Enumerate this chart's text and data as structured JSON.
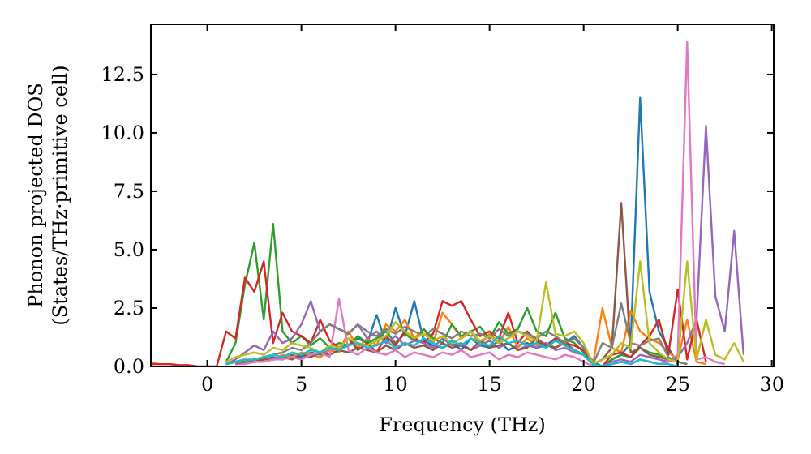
{
  "chart_data": {
    "type": "line",
    "xlabel": "Frequency (THz)",
    "ylabel": "Phonon projected DOS\n(States/THz·primitive cell)",
    "xlim": [
      -3,
      30.1
    ],
    "ylim": [
      0,
      14.65
    ],
    "xticks": [
      0,
      5,
      10,
      15,
      20,
      25,
      30
    ],
    "yticks": [
      {
        "value": 0,
        "label": "0.0"
      },
      {
        "value": 2.5,
        "label": "2.5"
      },
      {
        "value": 5,
        "label": "5.0"
      },
      {
        "value": 7.5,
        "label": "7.5"
      },
      {
        "value": 10,
        "label": "10.0"
      },
      {
        "value": 12.5,
        "label": "12.5"
      }
    ],
    "grid": false,
    "marker": "none",
    "line_style": "solid",
    "x": [
      -3,
      -2.5,
      -2,
      -1.5,
      -1,
      -0.5,
      0,
      0.5,
      1,
      1.5,
      2,
      2.5,
      3,
      3.5,
      4,
      4.5,
      5,
      5.5,
      6,
      6.5,
      7,
      7.5,
      8,
      8.5,
      9,
      9.5,
      10,
      10.5,
      11,
      11.5,
      12,
      12.5,
      13,
      13.5,
      14,
      14.5,
      15,
      15.5,
      16,
      16.5,
      17,
      17.5,
      18,
      18.5,
      19,
      19.5,
      20,
      20.5,
      21,
      21.5,
      22,
      22.5,
      23,
      23.5,
      24,
      24.5,
      25,
      25.5,
      26,
      26.5,
      27,
      27.5,
      28,
      28.5
    ],
    "series": [
      {
        "color": "#1f77b4",
        "values": [
          null,
          null,
          null,
          null,
          null,
          null,
          null,
          null,
          0.1,
          0.2,
          0.2,
          0.3,
          0.3,
          0.4,
          0.3,
          0.5,
          0.4,
          0.6,
          0.5,
          0.7,
          0.8,
          0.9,
          1.2,
          1.0,
          2.2,
          1.0,
          2.5,
          1.3,
          2.8,
          1.1,
          0.9,
          0.8,
          1.0,
          0.7,
          1.2,
          0.9,
          0.8,
          1.1,
          0.7,
          0.9,
          1.0,
          0.8,
          0.9,
          1.2,
          1.0,
          1.3,
          0.8,
          0.2,
          0,
          0.3,
          0.5,
          1.0,
          11.5,
          3.2,
          1.5,
          0.8,
          0.1,
          null,
          null,
          null,
          null,
          null,
          null,
          null
        ]
      },
      {
        "color": "#ff7f0e",
        "values": [
          0.15,
          0.1,
          0.1,
          0.05,
          0.05,
          null,
          null,
          null,
          0.1,
          0.2,
          0.3,
          0.2,
          0.4,
          0.3,
          0.5,
          0.4,
          0.6,
          0.5,
          0.4,
          0.7,
          0.6,
          1.5,
          0.8,
          1.2,
          0.9,
          1.8,
          1.5,
          2.0,
          1.2,
          1.6,
          1.0,
          2.3,
          1.8,
          1.2,
          1.5,
          0.9,
          1.4,
          1.0,
          1.7,
          0.8,
          1.2,
          0.9,
          1.0,
          0.8,
          1.1,
          0.7,
          0.5,
          0.1,
          2.5,
          0.8,
          0.6,
          2.4,
          1.5,
          1.2,
          1.0,
          0.6,
          0.3,
          2.0,
          0.2,
          0.1,
          null,
          null,
          null,
          null
        ]
      },
      {
        "color": "#2ca02c",
        "values": [
          null,
          null,
          null,
          null,
          null,
          null,
          null,
          null,
          0.2,
          1.0,
          3.5,
          5.3,
          2.0,
          6.1,
          1.5,
          1.0,
          1.3,
          0.9,
          1.2,
          0.8,
          1.0,
          0.9,
          1.3,
          1.0,
          1.2,
          1.5,
          1.0,
          1.4,
          1.1,
          1.6,
          1.2,
          1.0,
          1.8,
          1.3,
          1.5,
          1.7,
          1.2,
          1.9,
          1.4,
          1.6,
          2.5,
          1.5,
          1.3,
          2.3,
          1.2,
          1.0,
          0.6,
          0.1,
          0,
          0.3,
          0.5,
          0.4,
          0.8,
          0.6,
          0.5,
          0.3,
          0.2,
          null,
          null,
          null,
          null,
          null,
          null,
          null
        ]
      },
      {
        "color": "#d62728",
        "values": [
          0.1,
          0.1,
          0.1,
          0.05,
          0.05,
          0,
          0,
          0,
          1.5,
          1.2,
          3.8,
          3.2,
          4.5,
          1.0,
          2.3,
          1.5,
          1.3,
          1.0,
          2.0,
          1.1,
          0.8,
          1.2,
          0.7,
          1.0,
          0.6,
          1.3,
          0.9,
          1.5,
          1.2,
          1.0,
          1.4,
          2.8,
          2.6,
          2.8,
          2.0,
          1.3,
          1.5,
          1.2,
          2.3,
          1.0,
          1.5,
          1.1,
          0.8,
          1.2,
          1.0,
          0.9,
          0.7,
          0.1,
          0,
          0.5,
          0.6,
          0.4,
          0.9,
          1.3,
          2.0,
          0.5,
          3.3,
          0.3,
          2.0,
          0.2,
          null,
          null,
          null,
          null
        ]
      },
      {
        "color": "#9467bd",
        "values": [
          null,
          null,
          null,
          null,
          null,
          null,
          null,
          null,
          0.1,
          0.3,
          0.6,
          0.9,
          0.7,
          1.5,
          1.0,
          1.2,
          1.8,
          2.8,
          1.5,
          1.8,
          1.6,
          1.4,
          1.8,
          1.2,
          1.5,
          1.0,
          1.3,
          0.9,
          1.1,
          1.0,
          0.8,
          1.2,
          0.9,
          1.0,
          0.7,
          0.9,
          1.1,
          0.8,
          1.0,
          0.7,
          0.9,
          0.8,
          1.0,
          0.7,
          0.8,
          0.6,
          0.5,
          0.1,
          0,
          0.2,
          0.3,
          0.2,
          0.5,
          0.4,
          0.3,
          0.2,
          0.4,
          1.0,
          2.0,
          10.3,
          3.0,
          1.5,
          5.8,
          0.5
        ]
      },
      {
        "color": "#8c564b",
        "values": [
          null,
          null,
          null,
          null,
          null,
          null,
          null,
          null,
          null,
          0.1,
          0.2,
          0.2,
          0.3,
          0.3,
          0.4,
          0.3,
          0.5,
          0.4,
          0.6,
          0.5,
          0.7,
          0.6,
          0.8,
          0.7,
          0.6,
          0.9,
          0.7,
          1.0,
          0.8,
          0.9,
          0.7,
          1.0,
          0.8,
          0.9,
          0.7,
          1.1,
          0.8,
          0.9,
          1.0,
          0.7,
          0.8,
          1.2,
          0.9,
          0.8,
          1.0,
          0.7,
          0.5,
          0.1,
          0.3,
          0.8,
          7.0,
          0.6,
          0.8,
          0.5,
          0.4,
          0.3,
          0.2,
          0.1,
          null,
          null,
          null,
          null,
          null,
          null
        ]
      },
      {
        "color": "#e377c2",
        "values": [
          null,
          null,
          null,
          null,
          null,
          null,
          null,
          null,
          null,
          0.1,
          0.1,
          0.2,
          0.2,
          0.3,
          0.3,
          0.4,
          0.3,
          0.5,
          0.6,
          0.4,
          2.9,
          0.7,
          0.5,
          0.8,
          0.6,
          0.5,
          0.7,
          0.4,
          0.6,
          0.5,
          0.4,
          0.6,
          0.5,
          0.7,
          0.4,
          0.5,
          0.6,
          0.3,
          0.5,
          0.4,
          0.6,
          0.5,
          0.4,
          0.3,
          0.5,
          0.4,
          0.2,
          0,
          0,
          0.1,
          0.2,
          0.1,
          0.3,
          0.2,
          0.1,
          0.2,
          0.5,
          13.9,
          0.3,
          0.4,
          0.2,
          0.1,
          null,
          null
        ]
      },
      {
        "color": "#7f7f7f",
        "values": [
          null,
          null,
          null,
          null,
          null,
          null,
          null,
          null,
          null,
          0.1,
          0.2,
          0.3,
          0.4,
          0.5,
          0.6,
          0.8,
          0.7,
          1.0,
          1.5,
          1.8,
          1.6,
          1.4,
          1.8,
          1.5,
          1.3,
          1.6,
          1.4,
          1.7,
          1.5,
          1.3,
          1.6,
          1.4,
          1.2,
          1.5,
          1.3,
          1.4,
          1.2,
          1.6,
          1.3,
          1.5,
          1.4,
          1.2,
          1.5,
          1.3,
          1.0,
          1.2,
          0.8,
          0.1,
          1.0,
          0.8,
          2.7,
          1.0,
          0.9,
          1.1,
          1.2,
          0.4,
          0.2,
          0.1,
          null,
          null,
          null,
          null,
          null,
          null
        ]
      },
      {
        "color": "#bcbd22",
        "values": [
          null,
          null,
          null,
          null,
          null,
          null,
          null,
          null,
          0.2,
          0.4,
          0.5,
          0.6,
          0.5,
          0.8,
          0.7,
          1.0,
          0.9,
          0.8,
          0.6,
          0.9,
          0.8,
          1.2,
          1.0,
          0.9,
          1.1,
          1.3,
          1.9,
          1.5,
          1.2,
          1.4,
          1.1,
          1.3,
          1.0,
          1.2,
          1.5,
          1.1,
          1.3,
          1.0,
          1.2,
          1.5,
          1.3,
          1.1,
          3.6,
          1.4,
          1.3,
          1.5,
          1.0,
          0.1,
          0.3,
          0.5,
          1.0,
          0.8,
          4.5,
          1.0,
          0.6,
          0.3,
          0.2,
          4.5,
          0.3,
          2.0,
          0.5,
          0.3,
          1.0,
          0.2
        ]
      },
      {
        "color": "#17becf",
        "values": [
          null,
          null,
          null,
          null,
          null,
          null,
          null,
          null,
          0.1,
          0.2,
          0.3,
          0.3,
          0.4,
          0.5,
          0.4,
          0.6,
          0.5,
          0.7,
          0.6,
          0.8,
          0.7,
          0.9,
          1.0,
          0.8,
          0.9,
          1.1,
          0.8,
          1.0,
          0.9,
          1.2,
          1.0,
          0.8,
          1.1,
          0.9,
          1.2,
          1.0,
          0.9,
          1.3,
          1.0,
          1.1,
          0.9,
          1.0,
          0.8,
          1.1,
          0.9,
          0.7,
          0.5,
          0.1,
          0,
          0.1,
          0.2,
          0.1,
          0.3,
          0.2,
          0.1,
          0.1,
          0,
          null,
          null,
          null,
          null,
          null,
          null,
          null
        ]
      }
    ]
  }
}
